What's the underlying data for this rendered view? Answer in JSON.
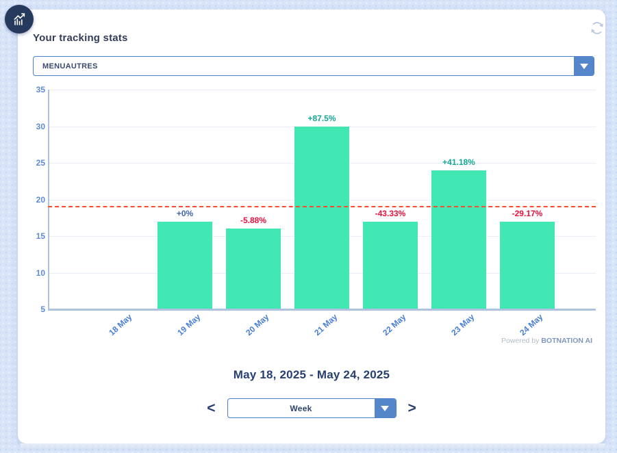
{
  "header": {
    "title": "Your tracking stats",
    "logo_icon": "bar-chart-trend-icon",
    "refresh_icon": "refresh-icon"
  },
  "tracking_select": {
    "value": "MENUAUTRES"
  },
  "chart_data": {
    "type": "bar",
    "title": "Your tracking stats",
    "categories": [
      "18 May",
      "19 May",
      "20 May",
      "21 May",
      "22 May",
      "23 May",
      "24 May"
    ],
    "values": [
      0,
      17,
      16,
      30,
      17,
      24,
      17
    ],
    "bar_labels": [
      "",
      "+0%",
      "-5.88%",
      "+87.5%",
      "-43.33%",
      "+41.18%",
      "-29.17%"
    ],
    "bar_label_colors": [
      "",
      "#3b63af",
      "#e8123c",
      "#14a795",
      "#e8123c",
      "#14a795",
      "#e8123c"
    ],
    "ylim": [
      5,
      35
    ],
    "yticks": [
      5,
      10,
      15,
      20,
      25,
      30,
      35
    ],
    "reference_line": 19,
    "grid": true,
    "legend": "none",
    "xlabel": "",
    "ylabel": ""
  },
  "colors": {
    "bar": "#42e8b3",
    "reference_line": "#ff4a2b",
    "accent_blue": "#5586ca",
    "axis": "#aec2e0",
    "positive_label": "#14a795",
    "negative_label": "#e8123c",
    "neutral_label": "#3b63af"
  },
  "powered_by": {
    "prefix": "Powered by ",
    "brand": "BOTNATION AI"
  },
  "footer": {
    "date_range": "May 18, 2025 - May 24, 2025",
    "period_select": {
      "value": "Week"
    },
    "prev_label": "<",
    "next_label": ">"
  }
}
